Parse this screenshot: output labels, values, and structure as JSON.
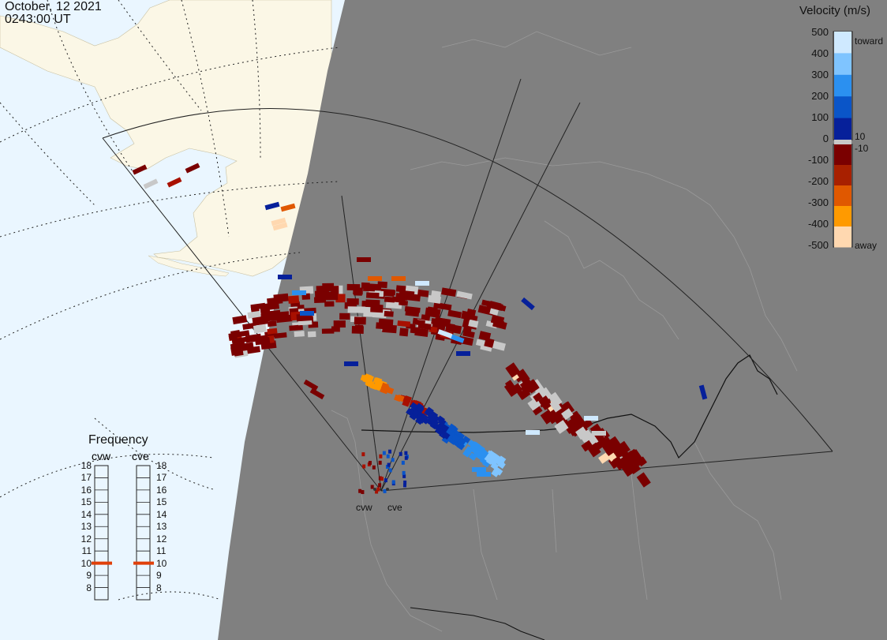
{
  "header": {
    "date": "October, 12 2021",
    "time": "0243:00 UT"
  },
  "colorbar": {
    "title": "Velocity (m/s)",
    "ticks": [
      "500",
      "400",
      "300",
      "200",
      "100",
      "0",
      "-100",
      "-200",
      "-300",
      "-400",
      "-500"
    ],
    "side_labels": [
      "toward",
      "10",
      "-10",
      "away"
    ],
    "toward_colors": [
      "#cfe9ff",
      "#7fc4ff",
      "#2b90f0",
      "#0a55c8",
      "#06209a"
    ],
    "away_colors": [
      "#7a0000",
      "#a82000",
      "#e05800",
      "#ff9a00",
      "#ffd8b0"
    ]
  },
  "frequency_panel": {
    "title": "Frequency",
    "radars": [
      "cvw",
      "cve"
    ],
    "scale": [
      "18",
      "17",
      "16",
      "15",
      "14",
      "13",
      "12",
      "11",
      "10",
      "9",
      "8"
    ],
    "current_mhz": {
      "cvw": 10.5,
      "cve": 10.5
    },
    "marker_color": "#e0400a"
  },
  "map": {
    "radar_labels": [
      "cvw",
      "cve"
    ],
    "night_color": "#808080",
    "ocean_color": "#eaf6ff",
    "land_day_color": "#fbf7e6"
  }
}
